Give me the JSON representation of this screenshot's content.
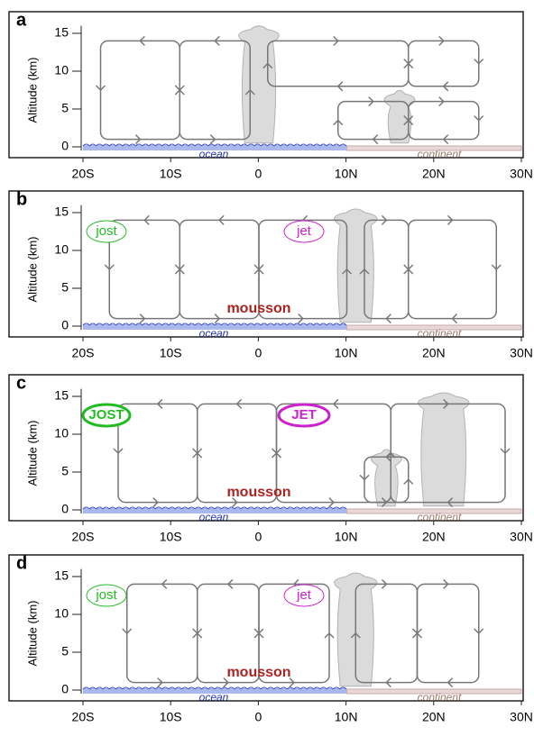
{
  "axis": {
    "y_label": "Altitude (km)",
    "y_ticks": [
      "0",
      "5",
      "10",
      "15"
    ],
    "x_ticks": [
      "20S",
      "10S",
      "0",
      "10N",
      "20N",
      "30N"
    ]
  },
  "surface": {
    "ocean": "ocean",
    "continent": "continent"
  },
  "panels": [
    {
      "letter": "a"
    },
    {
      "letter": "b",
      "jet_left": "jost",
      "jet_right": "jet",
      "monsoon": "mousson"
    },
    {
      "letter": "c",
      "jet_left": "JOST",
      "jet_right": "JET",
      "monsoon": "mousson"
    },
    {
      "letter": "d",
      "jet_left": "jost",
      "jet_right": "jet",
      "monsoon": "mousson"
    }
  ]
}
